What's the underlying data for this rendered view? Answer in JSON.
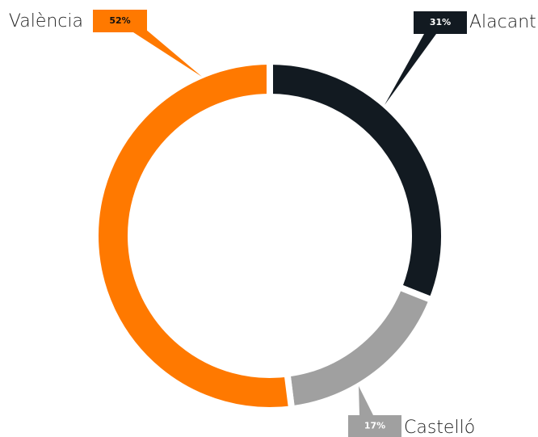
{
  "chart_data": {
    "type": "donut",
    "categories": [
      "Alacant",
      "Castelló",
      "València"
    ],
    "values": [
      31,
      17,
      52
    ],
    "value_labels": [
      "31%",
      "17%",
      "52%"
    ],
    "colors": [
      "#121a21",
      "#a0a0a0",
      "#ff7900"
    ]
  }
}
